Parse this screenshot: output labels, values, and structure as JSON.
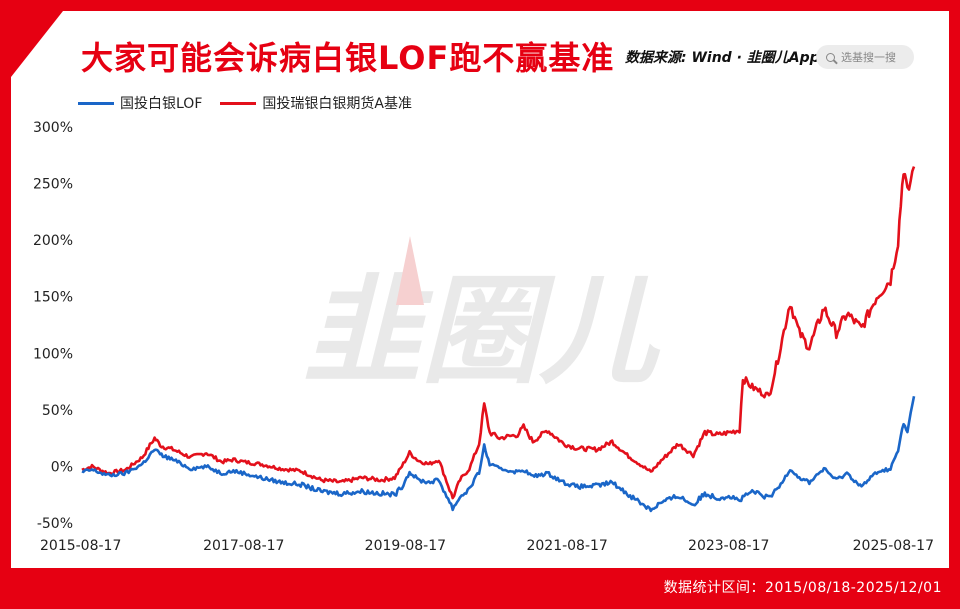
{
  "title": "大家可能会诉病白银LOF跑不赢基准",
  "source_text": "数据来源: Wind · 韭圈儿App",
  "search": {
    "placeholder": "选基搜一搜"
  },
  "watermark": "韭圈儿",
  "footer": "数据统计区间：2015/08/18-2025/12/01",
  "colors": {
    "accent": "#e60012",
    "series_blue": "#1a66c8",
    "series_red": "#e3101b"
  },
  "chart_data": {
    "type": "line",
    "title": "大家可能会诉病白银LOF跑不赢基准",
    "xlabel": "",
    "ylabel": "",
    "x_range": [
      "2015-08-17",
      "2025-12-01"
    ],
    "x_ticks": [
      "2015-08-17",
      "2017-08-17",
      "2019-08-17",
      "2021-08-17",
      "2023-08-17",
      "2025-08-17"
    ],
    "y_ticks": [
      -50,
      0,
      50,
      100,
      150,
      200,
      250,
      300
    ],
    "y_tick_labels": [
      "-50%",
      "0%",
      "50%",
      "100%",
      "150%",
      "200%",
      "250%",
      "300%"
    ],
    "ylim": [
      -50,
      300
    ],
    "grid": false,
    "legend_position": "top-left",
    "series": [
      {
        "name": "国投白银LOF",
        "color": "#1a66c8",
        "points": [
          [
            "2015-08-17",
            -5
          ],
          [
            "2015-10-01",
            -3
          ],
          [
            "2015-12-15",
            -8
          ],
          [
            "2016-03-01",
            -6
          ],
          [
            "2016-05-15",
            2
          ],
          [
            "2016-07-10",
            15
          ],
          [
            "2016-08-10",
            10
          ],
          [
            "2016-10-01",
            6
          ],
          [
            "2016-12-20",
            -2
          ],
          [
            "2017-03-01",
            0
          ],
          [
            "2017-05-10",
            -6
          ],
          [
            "2017-07-01",
            -4
          ],
          [
            "2017-08-17",
            -6
          ],
          [
            "2017-11-01",
            -10
          ],
          [
            "2018-02-01",
            -14
          ],
          [
            "2018-05-01",
            -16
          ],
          [
            "2018-08-01",
            -22
          ],
          [
            "2018-11-01",
            -24
          ],
          [
            "2019-02-01",
            -22
          ],
          [
            "2019-05-01",
            -24
          ],
          [
            "2019-06-30",
            -25
          ],
          [
            "2019-08-01",
            -18
          ],
          [
            "2019-09-05",
            -5
          ],
          [
            "2019-10-15",
            -12
          ],
          [
            "2019-12-01",
            -14
          ],
          [
            "2020-01-15",
            -12
          ],
          [
            "2020-03-18",
            -37
          ],
          [
            "2020-04-20",
            -27
          ],
          [
            "2020-06-01",
            -20
          ],
          [
            "2020-07-15",
            -5
          ],
          [
            "2020-08-07",
            18
          ],
          [
            "2020-09-01",
            2
          ],
          [
            "2020-10-15",
            -2
          ],
          [
            "2021-01-05",
            -5
          ],
          [
            "2021-02-01",
            -3
          ],
          [
            "2021-03-15",
            -9
          ],
          [
            "2021-05-20",
            -6
          ],
          [
            "2021-08-01",
            -14
          ],
          [
            "2021-10-01",
            -18
          ],
          [
            "2022-01-01",
            -17
          ],
          [
            "2022-03-08",
            -14
          ],
          [
            "2022-05-15",
            -24
          ],
          [
            "2022-08-30",
            -38
          ],
          [
            "2022-10-15",
            -32
          ],
          [
            "2023-01-01",
            -26
          ],
          [
            "2023-03-10",
            -34
          ],
          [
            "2023-05-01",
            -24
          ],
          [
            "2023-07-01",
            -28
          ],
          [
            "2023-08-17",
            -26
          ],
          [
            "2023-10-05",
            -30
          ],
          [
            "2023-12-01",
            -22
          ],
          [
            "2024-02-15",
            -28
          ],
          [
            "2024-04-01",
            -18
          ],
          [
            "2024-05-20",
            -2
          ],
          [
            "2024-07-01",
            -10
          ],
          [
            "2024-08-15",
            -14
          ],
          [
            "2024-10-20",
            -2
          ],
          [
            "2024-12-15",
            -12
          ],
          [
            "2025-02-01",
            -6
          ],
          [
            "2025-04-08",
            -18
          ],
          [
            "2025-06-15",
            -5
          ],
          [
            "2025-08-17",
            -2
          ],
          [
            "2025-09-20",
            14
          ],
          [
            "2025-10-15",
            38
          ],
          [
            "2025-11-01",
            30
          ],
          [
            "2025-12-01",
            62
          ]
        ]
      },
      {
        "name": "国投瑞银白银期货A基准",
        "color": "#e3101b",
        "points": [
          [
            "2015-08-17",
            -3
          ],
          [
            "2015-10-01",
            0
          ],
          [
            "2015-12-15",
            -6
          ],
          [
            "2016-03-01",
            -3
          ],
          [
            "2016-05-15",
            8
          ],
          [
            "2016-07-10",
            25
          ],
          [
            "2016-08-10",
            18
          ],
          [
            "2016-10-01",
            15
          ],
          [
            "2016-12-20",
            8
          ],
          [
            "2017-03-01",
            12
          ],
          [
            "2017-05-10",
            4
          ],
          [
            "2017-07-01",
            6
          ],
          [
            "2017-08-17",
            4
          ],
          [
            "2017-11-01",
            2
          ],
          [
            "2018-02-01",
            -2
          ],
          [
            "2018-05-01",
            -4
          ],
          [
            "2018-08-01",
            -12
          ],
          [
            "2018-11-01",
            -14
          ],
          [
            "2019-02-01",
            -10
          ],
          [
            "2019-05-01",
            -12
          ],
          [
            "2019-06-30",
            -10
          ],
          [
            "2019-08-01",
            0
          ],
          [
            "2019-09-05",
            12
          ],
          [
            "2019-10-15",
            5
          ],
          [
            "2019-12-01",
            2
          ],
          [
            "2020-01-15",
            6
          ],
          [
            "2020-03-18",
            -28
          ],
          [
            "2020-04-20",
            -12
          ],
          [
            "2020-06-01",
            -2
          ],
          [
            "2020-07-15",
            20
          ],
          [
            "2020-08-07",
            55
          ],
          [
            "2020-09-01",
            30
          ],
          [
            "2020-10-15",
            25
          ],
          [
            "2021-01-05",
            28
          ],
          [
            "2021-02-01",
            35
          ],
          [
            "2021-03-15",
            22
          ],
          [
            "2021-05-20",
            32
          ],
          [
            "2021-08-01",
            20
          ],
          [
            "2021-10-01",
            16
          ],
          [
            "2022-01-01",
            15
          ],
          [
            "2022-03-08",
            22
          ],
          [
            "2022-05-15",
            10
          ],
          [
            "2022-08-30",
            -5
          ],
          [
            "2022-10-15",
            5
          ],
          [
            "2023-01-01",
            20
          ],
          [
            "2023-03-10",
            10
          ],
          [
            "2023-05-01",
            30
          ],
          [
            "2023-07-01",
            28
          ],
          [
            "2023-08-17",
            30
          ],
          [
            "2023-10-05",
            32
          ],
          [
            "2023-10-20",
            78
          ],
          [
            "2023-12-01",
            70
          ],
          [
            "2024-02-15",
            62
          ],
          [
            "2024-04-01",
            100
          ],
          [
            "2024-05-20",
            145
          ],
          [
            "2024-07-01",
            118
          ],
          [
            "2024-08-15",
            105
          ],
          [
            "2024-10-20",
            140
          ],
          [
            "2024-12-15",
            118
          ],
          [
            "2025-02-01",
            135
          ],
          [
            "2025-04-08",
            122
          ],
          [
            "2025-06-15",
            150
          ],
          [
            "2025-08-17",
            165
          ],
          [
            "2025-09-20",
            200
          ],
          [
            "2025-10-15",
            265
          ],
          [
            "2025-11-01",
            240
          ],
          [
            "2025-12-01",
            265
          ]
        ]
      }
    ]
  }
}
